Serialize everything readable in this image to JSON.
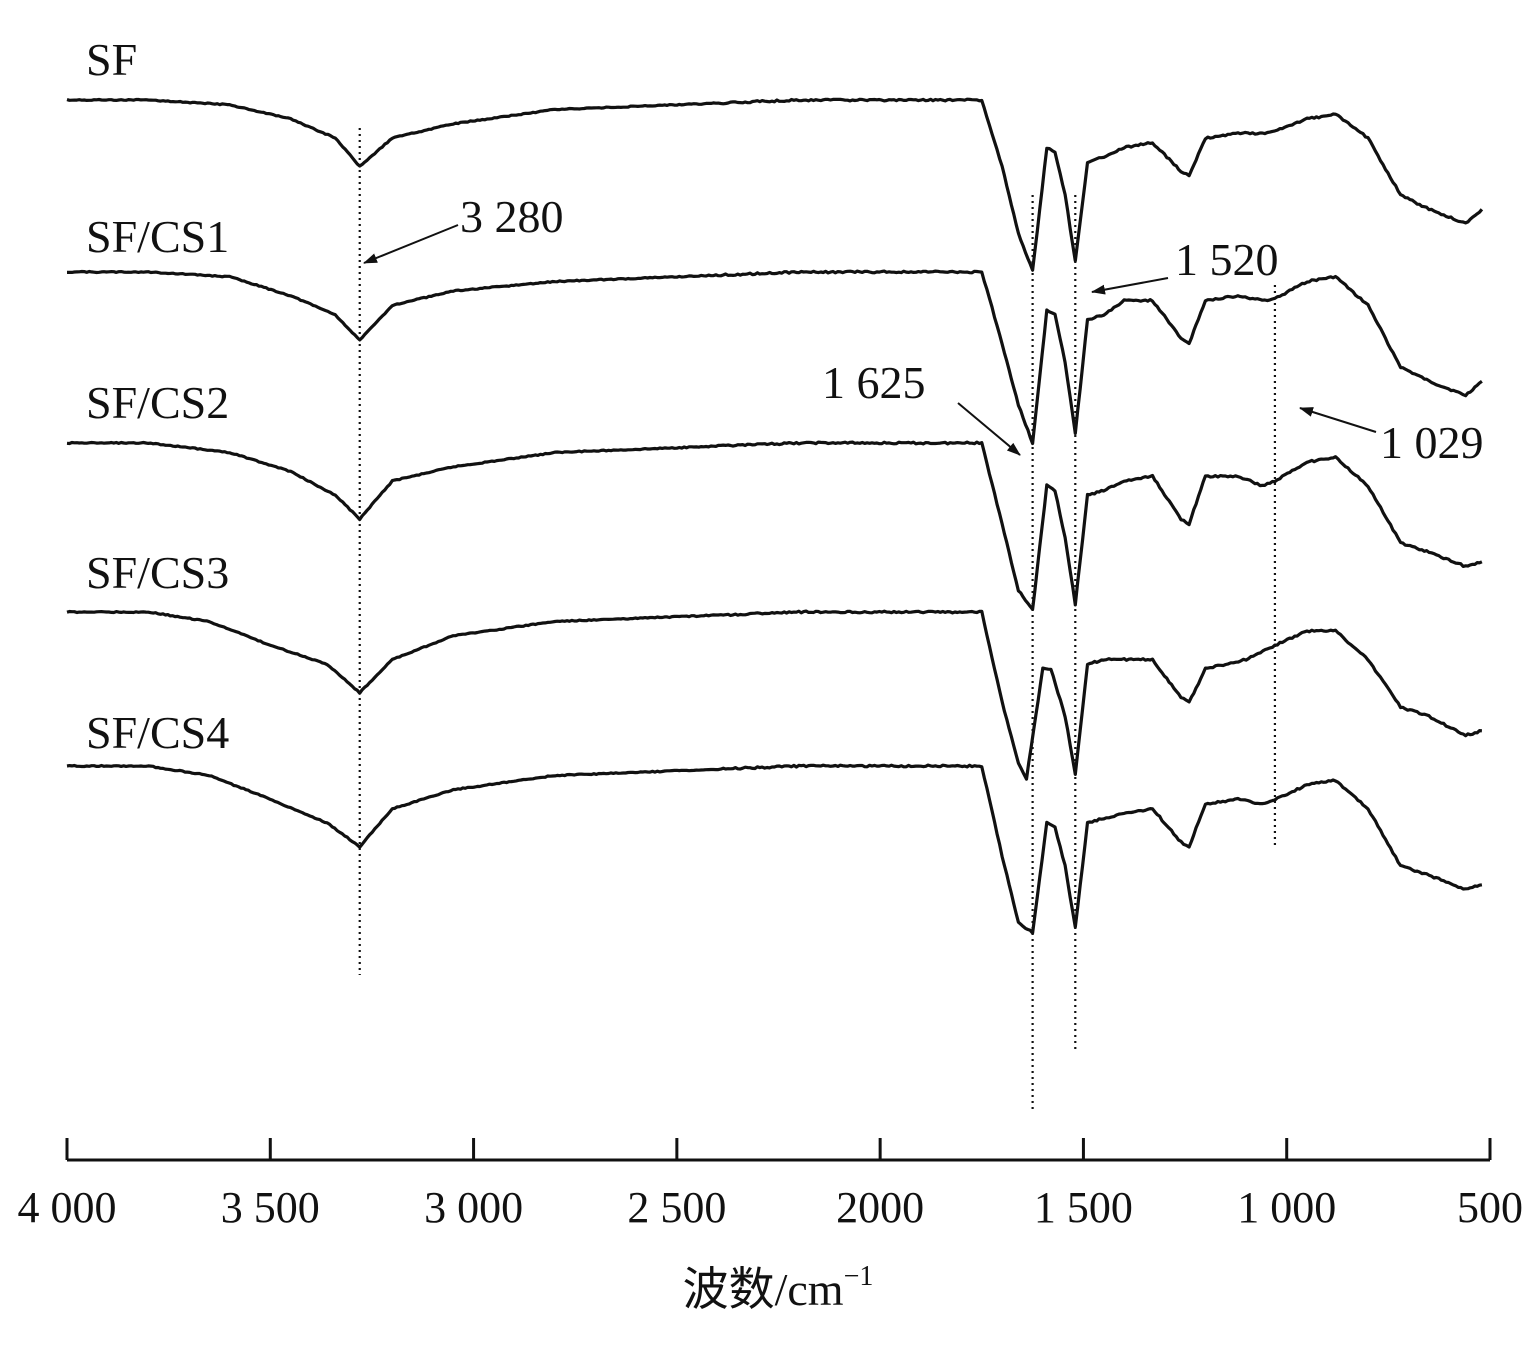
{
  "chart_data": {
    "type": "line",
    "xlabel": "波数/cm",
    "xlabel_sup": "−1",
    "xlim": [
      4000,
      500
    ],
    "x_reversed": true,
    "x_ticks": [
      4000,
      3500,
      3000,
      2500,
      2000,
      1500,
      1000,
      500
    ],
    "x_tick_labels": [
      "4 000",
      "3 500",
      "3 000",
      "2 500",
      "2000",
      "1 500",
      "1 000",
      "500"
    ],
    "y_axis_shown": false,
    "grid": false,
    "series": [
      {
        "name": "SF",
        "points": [
          [
            4000,
            0.0
          ],
          [
            3800,
            0.0
          ],
          [
            3600,
            -0.05
          ],
          [
            3450,
            -0.2
          ],
          [
            3340,
            -0.4
          ],
          [
            3280,
            -0.7
          ],
          [
            3200,
            -0.4
          ],
          [
            3050,
            -0.25
          ],
          [
            2800,
            -0.1
          ],
          [
            2500,
            -0.05
          ],
          [
            2200,
            0.0
          ],
          [
            1750,
            0.0
          ],
          [
            1700,
            -0.7
          ],
          [
            1660,
            -1.4
          ],
          [
            1625,
            -1.8
          ],
          [
            1590,
            -0.5
          ],
          [
            1570,
            -0.55
          ],
          [
            1545,
            -1.0
          ],
          [
            1520,
            -1.7
          ],
          [
            1490,
            -0.65
          ],
          [
            1450,
            -0.6
          ],
          [
            1400,
            -0.5
          ],
          [
            1330,
            -0.45
          ],
          [
            1260,
            -0.75
          ],
          [
            1240,
            -0.8
          ],
          [
            1200,
            -0.4
          ],
          [
            1120,
            -0.35
          ],
          [
            1060,
            -0.35
          ],
          [
            1029,
            -0.32
          ],
          [
            950,
            -0.2
          ],
          [
            880,
            -0.15
          ],
          [
            800,
            -0.4
          ],
          [
            720,
            -1.0
          ],
          [
            650,
            -1.15
          ],
          [
            560,
            -1.3
          ],
          [
            520,
            -1.15
          ]
        ]
      },
      {
        "name": "SF/CS1",
        "points": [
          [
            4000,
            0.0
          ],
          [
            3800,
            0.0
          ],
          [
            3600,
            -0.05
          ],
          [
            3450,
            -0.25
          ],
          [
            3340,
            -0.45
          ],
          [
            3280,
            -0.72
          ],
          [
            3200,
            -0.35
          ],
          [
            3050,
            -0.2
          ],
          [
            2800,
            -0.1
          ],
          [
            2500,
            -0.05
          ],
          [
            2200,
            0.0
          ],
          [
            1750,
            0.0
          ],
          [
            1700,
            -0.75
          ],
          [
            1660,
            -1.4
          ],
          [
            1625,
            -1.8
          ],
          [
            1590,
            -0.4
          ],
          [
            1570,
            -0.45
          ],
          [
            1545,
            -0.95
          ],
          [
            1520,
            -1.7
          ],
          [
            1490,
            -0.5
          ],
          [
            1450,
            -0.45
          ],
          [
            1400,
            -0.3
          ],
          [
            1330,
            -0.3
          ],
          [
            1260,
            -0.7
          ],
          [
            1240,
            -0.75
          ],
          [
            1200,
            -0.3
          ],
          [
            1120,
            -0.25
          ],
          [
            1060,
            -0.3
          ],
          [
            1029,
            -0.28
          ],
          [
            950,
            -0.1
          ],
          [
            880,
            -0.05
          ],
          [
            800,
            -0.35
          ],
          [
            720,
            -1.0
          ],
          [
            650,
            -1.15
          ],
          [
            560,
            -1.3
          ],
          [
            520,
            -1.15
          ]
        ]
      },
      {
        "name": "SF/CS2",
        "points": [
          [
            4000,
            0.0
          ],
          [
            3800,
            0.0
          ],
          [
            3600,
            -0.1
          ],
          [
            3450,
            -0.3
          ],
          [
            3340,
            -0.55
          ],
          [
            3280,
            -0.8
          ],
          [
            3200,
            -0.4
          ],
          [
            3050,
            -0.25
          ],
          [
            2800,
            -0.1
          ],
          [
            2500,
            -0.05
          ],
          [
            2200,
            0.0
          ],
          [
            1750,
            0.0
          ],
          [
            1700,
            -0.85
          ],
          [
            1660,
            -1.55
          ],
          [
            1625,
            -1.75
          ],
          [
            1590,
            -0.45
          ],
          [
            1570,
            -0.5
          ],
          [
            1545,
            -1.0
          ],
          [
            1520,
            -1.7
          ],
          [
            1490,
            -0.55
          ],
          [
            1450,
            -0.5
          ],
          [
            1400,
            -0.4
          ],
          [
            1330,
            -0.35
          ],
          [
            1260,
            -0.8
          ],
          [
            1240,
            -0.85
          ],
          [
            1200,
            -0.35
          ],
          [
            1120,
            -0.35
          ],
          [
            1060,
            -0.45
          ],
          [
            1029,
            -0.4
          ],
          [
            950,
            -0.2
          ],
          [
            880,
            -0.15
          ],
          [
            800,
            -0.45
          ],
          [
            720,
            -1.05
          ],
          [
            650,
            -1.15
          ],
          [
            560,
            -1.3
          ],
          [
            520,
            -1.25
          ]
        ]
      },
      {
        "name": "SF/CS3",
        "points": [
          [
            4000,
            0.0
          ],
          [
            3800,
            0.0
          ],
          [
            3650,
            -0.1
          ],
          [
            3500,
            -0.35
          ],
          [
            3360,
            -0.55
          ],
          [
            3280,
            -0.85
          ],
          [
            3200,
            -0.5
          ],
          [
            3050,
            -0.25
          ],
          [
            2800,
            -0.1
          ],
          [
            2500,
            -0.05
          ],
          [
            2200,
            0.0
          ],
          [
            1750,
            0.0
          ],
          [
            1700,
            -0.95
          ],
          [
            1660,
            -1.6
          ],
          [
            1640,
            -1.75
          ],
          [
            1600,
            -0.6
          ],
          [
            1580,
            -0.6
          ],
          [
            1545,
            -1.1
          ],
          [
            1520,
            -1.7
          ],
          [
            1490,
            -0.55
          ],
          [
            1450,
            -0.5
          ],
          [
            1400,
            -0.5
          ],
          [
            1330,
            -0.5
          ],
          [
            1260,
            -0.9
          ],
          [
            1240,
            -0.95
          ],
          [
            1200,
            -0.6
          ],
          [
            1150,
            -0.55
          ],
          [
            1100,
            -0.5
          ],
          [
            1029,
            -0.35
          ],
          [
            950,
            -0.2
          ],
          [
            880,
            -0.2
          ],
          [
            800,
            -0.5
          ],
          [
            720,
            -1.0
          ],
          [
            650,
            -1.1
          ],
          [
            560,
            -1.3
          ],
          [
            520,
            -1.25
          ]
        ]
      },
      {
        "name": "SF/CS4",
        "points": [
          [
            4000,
            0.0
          ],
          [
            3800,
            0.0
          ],
          [
            3650,
            -0.1
          ],
          [
            3500,
            -0.35
          ],
          [
            3360,
            -0.6
          ],
          [
            3280,
            -0.85
          ],
          [
            3200,
            -0.45
          ],
          [
            3050,
            -0.25
          ],
          [
            2800,
            -0.1
          ],
          [
            2500,
            -0.05
          ],
          [
            2200,
            0.0
          ],
          [
            1750,
            0.0
          ],
          [
            1700,
            -0.95
          ],
          [
            1660,
            -1.65
          ],
          [
            1625,
            -1.75
          ],
          [
            1590,
            -0.6
          ],
          [
            1570,
            -0.65
          ],
          [
            1545,
            -1.05
          ],
          [
            1520,
            -1.7
          ],
          [
            1490,
            -0.6
          ],
          [
            1450,
            -0.55
          ],
          [
            1400,
            -0.5
          ],
          [
            1330,
            -0.45
          ],
          [
            1260,
            -0.8
          ],
          [
            1240,
            -0.85
          ],
          [
            1200,
            -0.4
          ],
          [
            1120,
            -0.35
          ],
          [
            1060,
            -0.4
          ],
          [
            1029,
            -0.35
          ],
          [
            950,
            -0.2
          ],
          [
            880,
            -0.15
          ],
          [
            800,
            -0.45
          ],
          [
            720,
            -1.05
          ],
          [
            650,
            -1.15
          ],
          [
            560,
            -1.3
          ],
          [
            520,
            -1.25
          ]
        ]
      }
    ],
    "reference_lines": [
      3280,
      1625,
      1520,
      1029
    ],
    "annotations": [
      {
        "text": "3 280",
        "x": 3280
      },
      {
        "text": "1 520",
        "x": 1520
      },
      {
        "text": "1 625",
        "x": 1625
      },
      {
        "text": "1 029",
        "x": 1029
      }
    ]
  }
}
